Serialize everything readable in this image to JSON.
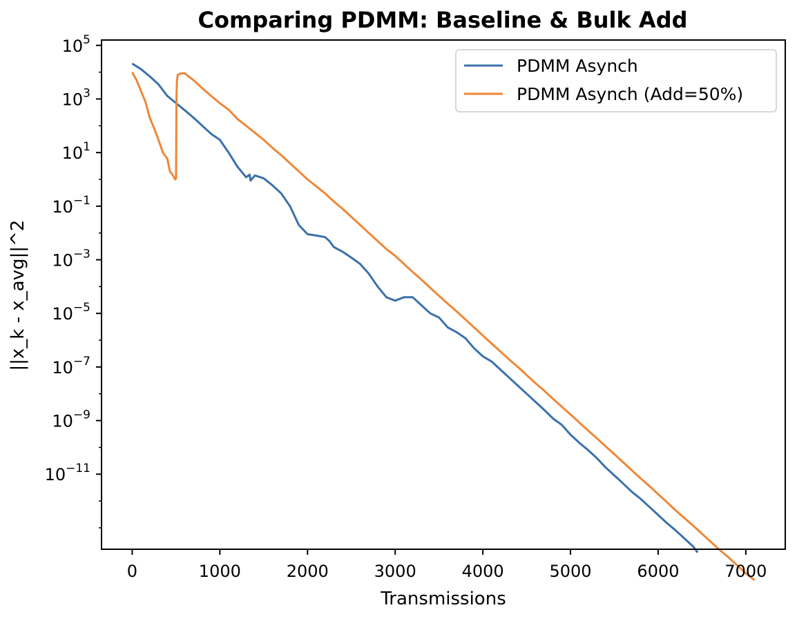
{
  "chart_data": {
    "type": "line",
    "title": "Comparing PDMM: Baseline & Bulk Add",
    "xlabel": "Transmissions",
    "ylabel": "||x_k - x_avg||^2",
    "xlim": [
      -350,
      7450
    ],
    "ylim_log10": [
      -13.8,
      5.2
    ],
    "yscale": "log",
    "xticks": [
      0,
      1000,
      2000,
      3000,
      4000,
      5000,
      6000,
      7000
    ],
    "xtick_labels": [
      "0",
      "1000",
      "2000",
      "3000",
      "4000",
      "5000",
      "6000",
      "7000"
    ],
    "yticks_log10": [
      5,
      3,
      1,
      -1,
      -3,
      -5,
      -7,
      -9,
      -11
    ],
    "ytick_base": "10",
    "ytick_exponents": [
      "5",
      "3",
      "1",
      "−1",
      "−3",
      "−5",
      "−7",
      "−9",
      "−11"
    ],
    "grid": false,
    "legend_position": "upper right",
    "series": [
      {
        "name": "PDMM Asynch",
        "color": "#3a70ab",
        "points": [
          [
            0,
            21000.0
          ],
          [
            100,
            13000.0
          ],
          [
            200,
            7000.0
          ],
          [
            300,
            3500.0
          ],
          [
            400,
            1300.0
          ],
          [
            500,
            700.0
          ],
          [
            600,
            380.0
          ],
          [
            700,
            200.0
          ],
          [
            800,
            100.0
          ],
          [
            900,
            50.0
          ],
          [
            1000,
            30.0
          ],
          [
            1100,
            10.0
          ],
          [
            1200,
            3
          ],
          [
            1300,
            1.2
          ],
          [
            1340,
            1.5
          ],
          [
            1350,
            0.9
          ],
          [
            1400,
            1.4
          ],
          [
            1500,
            1.1
          ],
          [
            1600,
            0.6
          ],
          [
            1700,
            0.3
          ],
          [
            1800,
            0.1
          ],
          [
            1900,
            0.02
          ],
          [
            2000,
            0.009
          ],
          [
            2100,
            0.008
          ],
          [
            2200,
            0.007
          ],
          [
            2250,
            0.005
          ],
          [
            2300,
            0.003
          ],
          [
            2400,
            0.002
          ],
          [
            2500,
            0.0012
          ],
          [
            2600,
            0.0007
          ],
          [
            2700,
            0.0003
          ],
          [
            2800,
            0.0001
          ],
          [
            2900,
            4e-05
          ],
          [
            3000,
            3e-05
          ],
          [
            3100,
            4e-05
          ],
          [
            3200,
            4e-05
          ],
          [
            3300,
            2e-05
          ],
          [
            3400,
            1e-05
          ],
          [
            3500,
            7e-06
          ],
          [
            3600,
            3e-06
          ],
          [
            3700,
            2e-06
          ],
          [
            3800,
            1.2e-06
          ],
          [
            3900,
            5e-07
          ],
          [
            4000,
            2.5e-07
          ],
          [
            4100,
            1.6e-07
          ],
          [
            4200,
            8e-08
          ],
          [
            4300,
            4e-08
          ],
          [
            4400,
            2e-08
          ],
          [
            4500,
            1e-08
          ],
          [
            4600,
            5e-09
          ],
          [
            4700,
            2.5e-09
          ],
          [
            4800,
            1.2e-09
          ],
          [
            4900,
            7e-10
          ],
          [
            5000,
            3e-10
          ],
          [
            5100,
            1.5e-10
          ],
          [
            5200,
            8e-11
          ],
          [
            5300,
            4e-11
          ],
          [
            5400,
            1.8e-11
          ],
          [
            5500,
            9e-12
          ],
          [
            5600,
            4.5e-12
          ],
          [
            5700,
            2.2e-12
          ],
          [
            5800,
            1.2e-12
          ],
          [
            5900,
            6e-13
          ],
          [
            6000,
            3e-13
          ],
          [
            6100,
            1.5e-13
          ],
          [
            6200,
            8e-14
          ],
          [
            6300,
            4e-14
          ],
          [
            6400,
            2e-14
          ],
          [
            6450,
            1.2e-14
          ]
        ]
      },
      {
        "name": "PDMM Asynch (Add=50%)",
        "color": "#ef8636",
        "points": [
          [
            0,
            10000.0
          ],
          [
            50,
            5000.0
          ],
          [
            100,
            2000.0
          ],
          [
            150,
            800.0
          ],
          [
            200,
            200.0
          ],
          [
            250,
            80.0
          ],
          [
            300,
            30.0
          ],
          [
            350,
            10.0
          ],
          [
            400,
            6
          ],
          [
            430,
            2
          ],
          [
            460,
            1.5
          ],
          [
            490,
            1
          ],
          [
            500,
            1.1
          ],
          [
            505,
            1000.0
          ],
          [
            510,
            5000.0
          ],
          [
            520,
            8000.0
          ],
          [
            550,
            9000.0
          ],
          [
            600,
            9000.0
          ],
          [
            700,
            5000.0
          ],
          [
            800,
            2500.0
          ],
          [
            900,
            1300.0
          ],
          [
            1000,
            700.0
          ],
          [
            1100,
            400.0
          ],
          [
            1200,
            180.0
          ],
          [
            1300,
            100.0
          ],
          [
            1400,
            55.0
          ],
          [
            1500,
            30.0
          ],
          [
            1600,
            15.0
          ],
          [
            1700,
            8
          ],
          [
            1800,
            4
          ],
          [
            1900,
            2
          ],
          [
            2000,
            1
          ],
          [
            2100,
            0.55
          ],
          [
            2200,
            0.3
          ],
          [
            2300,
            0.15
          ],
          [
            2400,
            0.08
          ],
          [
            2500,
            0.04
          ],
          [
            2600,
            0.02
          ],
          [
            2700,
            0.01
          ],
          [
            2800,
            0.005
          ],
          [
            2900,
            0.0025
          ],
          [
            3000,
            0.0014
          ],
          [
            3100,
            0.0007
          ],
          [
            3200,
            0.00035
          ],
          [
            3300,
            0.00018
          ],
          [
            3400,
            9e-05
          ],
          [
            3500,
            4.5e-05
          ],
          [
            3600,
            2.3e-05
          ],
          [
            3700,
            1.2e-05
          ],
          [
            3800,
            6e-06
          ],
          [
            3900,
            3e-06
          ],
          [
            4000,
            1.5e-06
          ],
          [
            4100,
            7.5e-07
          ],
          [
            4200,
            3.8e-07
          ],
          [
            4300,
            1.9e-07
          ],
          [
            4400,
            1e-07
          ],
          [
            4500,
            5e-08
          ],
          [
            4600,
            2.5e-08
          ],
          [
            4700,
            1.3e-08
          ],
          [
            4800,
            6.5e-09
          ],
          [
            4900,
            3.3e-09
          ],
          [
            5000,
            1.7e-09
          ],
          [
            5100,
            8.5e-10
          ],
          [
            5200,
            4.3e-10
          ],
          [
            5300,
            2.2e-10
          ],
          [
            5400,
            1.1e-10
          ],
          [
            5500,
            5.6e-11
          ],
          [
            5600,
            2.8e-11
          ],
          [
            5700,
            1.4e-11
          ],
          [
            5800,
            7e-12
          ],
          [
            5900,
            3.6e-12
          ],
          [
            6000,
            1.8e-12
          ],
          [
            6100,
            9e-13
          ],
          [
            6200,
            4.5e-13
          ],
          [
            6300,
            2.3e-13
          ],
          [
            6400,
            1.2e-13
          ],
          [
            6500,
            6e-14
          ],
          [
            6600,
            3e-14
          ],
          [
            6700,
            1.5e-14
          ],
          [
            6800,
            8e-15
          ],
          [
            6900,
            4e-15
          ],
          [
            7000,
            2e-15
          ],
          [
            7100,
            1.1e-15
          ]
        ]
      }
    ]
  }
}
